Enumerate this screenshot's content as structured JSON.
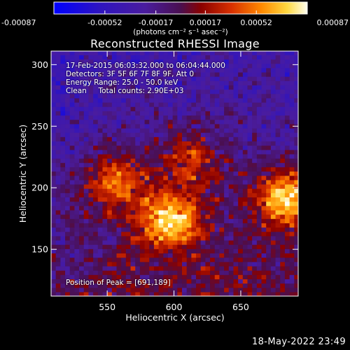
{
  "chart_data": {
    "type": "heatmap",
    "title": "Reconstructed RHESSI Image",
    "xlabel": "Heliocentric X (arcsec)",
    "ylabel": "Heliocentric Y (arcsec)",
    "xlim": [
      508,
      693
    ],
    "ylim": [
      112,
      311
    ],
    "x_ticks": [
      550,
      600,
      650
    ],
    "y_ticks": [
      150,
      200,
      250,
      300
    ],
    "colorbar": {
      "ticks": [
        "-0.00087",
        "-0.00052",
        "-0.00017",
        "0.00017",
        "0.00052",
        "0.00087"
      ],
      "unit_label": "(photons cm⁻² s⁻¹ asec⁻²)",
      "range": [
        -0.00087,
        0.00087
      ]
    },
    "annotations": {
      "time": "17-Feb-2015 06:03:32.000 to 06:04:44.000",
      "detectors": "Detectors: 3F 5F 6F 7F 8F 9F, Att 0",
      "energy": "Energy Range: 25.0 - 50.0 keV",
      "method": "Clean     Total counts: 2.90E+03",
      "peak": "Position of Peak = [691,189]"
    },
    "sources": [
      {
        "x": 597,
        "y": 174,
        "peak": 0.00087
      },
      {
        "x": 685,
        "y": 192,
        "peak": 0.00087
      },
      {
        "x": 556,
        "y": 205,
        "peak": 0.0006
      },
      {
        "x": 612,
        "y": 222,
        "peak": 0.0005
      }
    ],
    "peak_position": [
      691,
      189
    ]
  },
  "footer": {
    "timestamp": "18-May-2022 23:49"
  },
  "colors": {
    "background": "#000000",
    "foreground": "#ffffff",
    "colormap": [
      "#0000ff",
      "#3a1aa8",
      "#5a22a0",
      "#7a1e6e",
      "#b01e0e",
      "#e04000",
      "#ff8000",
      "#ffd020",
      "#ffffe0"
    ]
  }
}
